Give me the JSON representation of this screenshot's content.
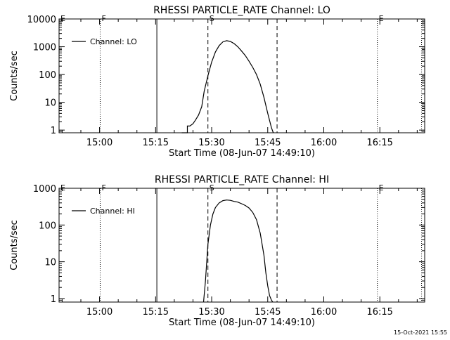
{
  "footer": {
    "timestamp": "15-Oct-2021 15:55"
  },
  "chart_data": [
    {
      "type": "line",
      "title": "RHESSI PARTICLE_RATE Channel: LO",
      "xlabel": "Start Time (08-Jun-07 14:49:10)",
      "ylabel": "Counts/sec",
      "yscale": "log",
      "ylim": [
        0.8,
        10000
      ],
      "xlim": [
        "14:49:10",
        "16:27:00"
      ],
      "xticks": [
        "15:00",
        "15:15",
        "15:30",
        "15:45",
        "16:00",
        "16:15"
      ],
      "yticks": [
        "1",
        "10",
        "100",
        "1000",
        "10000"
      ],
      "legend": {
        "position": "top-left",
        "entries": [
          "Channel: LO"
        ]
      },
      "grid": false,
      "markers": [
        {
          "label": "E",
          "time": "14:49:10",
          "style": "dotted"
        },
        {
          "label": "F",
          "time": "15:00:10",
          "style": "dotted"
        },
        {
          "label": "",
          "time": "15:15:20",
          "style": "solid"
        },
        {
          "label": "S",
          "time": "15:29:00",
          "style": "dashed"
        },
        {
          "label": "",
          "time": "15:47:30",
          "style": "dashed"
        },
        {
          "label": "E",
          "time": "16:14:20",
          "style": "dotted"
        },
        {
          "label": "",
          "time": "16:26:10",
          "style": "dotted"
        }
      ],
      "series": [
        {
          "name": "Channel: LO",
          "x": [
            "15:22:00",
            "15:23:30",
            "15:23:30",
            "15:24:10",
            "15:24:10",
            "15:25:00",
            "15:25:40",
            "15:26:30",
            "15:27:20",
            "15:28:00",
            "15:29:00",
            "15:30:00",
            "15:31:00",
            "15:32:00",
            "15:33:00",
            "15:34:00",
            "15:35:00",
            "15:36:00",
            "15:37:00",
            "15:38:00",
            "15:39:00",
            "15:40:00",
            "15:41:00",
            "15:42:00",
            "15:43:00",
            "15:44:00",
            "15:45:00",
            "15:46:00",
            "15:46:30"
          ],
          "y": [
            0.8,
            0.8,
            1.4,
            1.4,
            1.4,
            1.7,
            2.3,
            3.5,
            7,
            25,
            90,
            280,
            650,
            1100,
            1500,
            1650,
            1550,
            1300,
            1000,
            700,
            480,
            300,
            180,
            100,
            45,
            15,
            4,
            1.2,
            0.8
          ]
        }
      ]
    },
    {
      "type": "line",
      "title": "RHESSI PARTICLE_RATE Channel: HI",
      "xlabel": "Start Time (08-Jun-07 14:49:10)",
      "ylabel": "Counts/sec",
      "yscale": "log",
      "ylim": [
        0.8,
        1000
      ],
      "xlim": [
        "14:49:10",
        "16:27:00"
      ],
      "xticks": [
        "15:00",
        "15:15",
        "15:30",
        "15:45",
        "16:00",
        "16:15"
      ],
      "yticks": [
        "1",
        "10",
        "100",
        "1000"
      ],
      "legend": {
        "position": "top-left",
        "entries": [
          "Channel: HI"
        ]
      },
      "grid": false,
      "markers": [
        {
          "label": "E",
          "time": "14:49:10",
          "style": "dotted"
        },
        {
          "label": "F",
          "time": "15:00:10",
          "style": "dotted"
        },
        {
          "label": "",
          "time": "15:15:20",
          "style": "solid"
        },
        {
          "label": "S",
          "time": "15:29:00",
          "style": "dashed"
        },
        {
          "label": "",
          "time": "15:47:30",
          "style": "dashed"
        },
        {
          "label": "E",
          "time": "16:14:20",
          "style": "dotted"
        },
        {
          "label": "",
          "time": "16:26:10",
          "style": "dotted"
        }
      ],
      "series": [
        {
          "name": "Channel: HI",
          "x": [
            "15:27:50",
            "15:28:20",
            "15:29:00",
            "15:29:40",
            "15:30:20",
            "15:31:00",
            "15:32:00",
            "15:33:00",
            "15:34:00",
            "15:35:00",
            "15:36:00",
            "15:37:00",
            "15:38:00",
            "15:39:00",
            "15:40:00",
            "15:41:00",
            "15:42:00",
            "15:43:00",
            "15:44:00",
            "15:44:30",
            "15:45:00",
            "15:45:30",
            "15:46:00",
            "15:46:20"
          ],
          "y": [
            0.8,
            3,
            30,
            100,
            200,
            300,
            400,
            460,
            480,
            470,
            440,
            420,
            380,
            340,
            290,
            220,
            140,
            60,
            15,
            5,
            2.2,
            1.2,
            0.9,
            0.8
          ]
        }
      ]
    }
  ]
}
